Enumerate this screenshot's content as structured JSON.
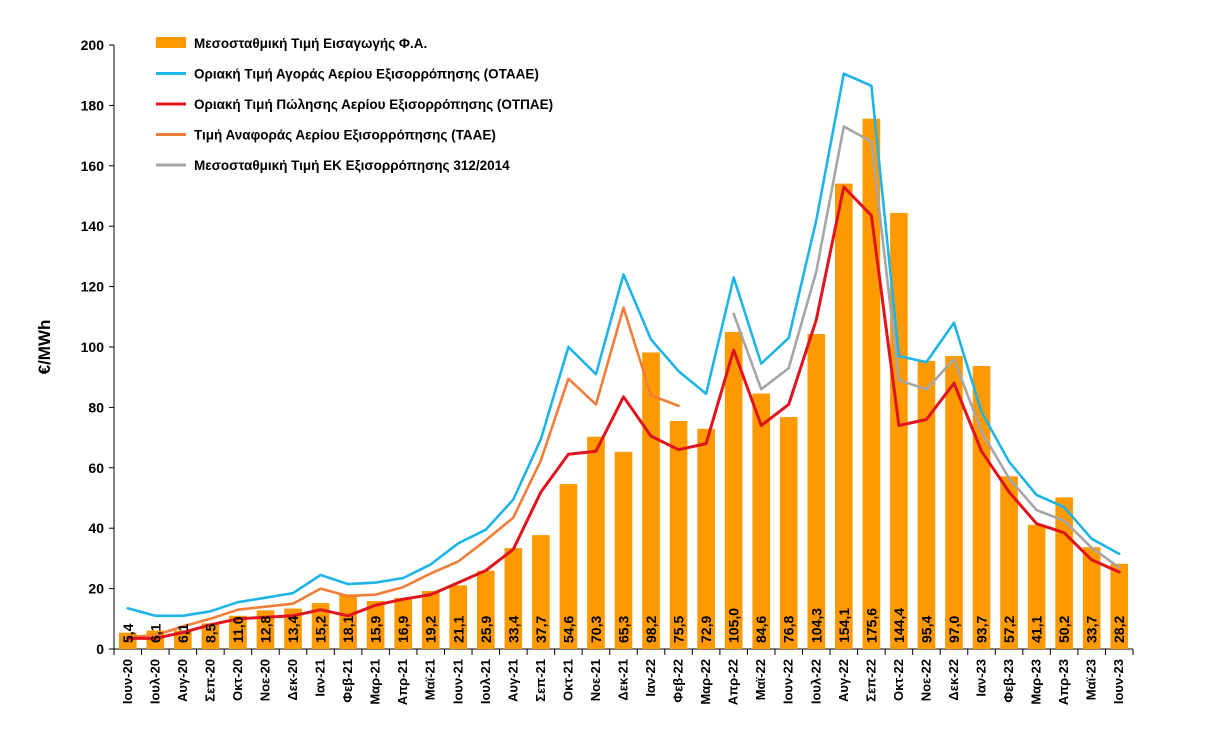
{
  "chart_data": {
    "type": "bar",
    "title": "",
    "ylabel": "€/MWh",
    "xlabel": "",
    "ylim": [
      0,
      200
    ],
    "yticks": [
      0,
      20,
      40,
      60,
      80,
      100,
      120,
      140,
      160,
      180,
      200
    ],
    "legend_position": "top-left",
    "categories": [
      "Ιουν-20",
      "Ιουλ-20",
      "Αυγ-20",
      "Σεπ-20",
      "Οκτ-20",
      "Νοε-20",
      "Δεκ-20",
      "Ιαν-21",
      "Φεβ-21",
      "Μαρ-21",
      "Απρ-21",
      "Μαϊ-21",
      "Ιουν-21",
      "Ιουλ-21",
      "Αυγ-21",
      "Σεπ-21",
      "Οκτ-21",
      "Νοε-21",
      "Δεκ-21",
      "Ιαν-22",
      "Φεβ-22",
      "Μαρ-22",
      "Απρ-22",
      "Μαϊ-22",
      "Ιουν-22",
      "Ιουλ-22",
      "Αυγ-22",
      "Σεπ-22",
      "Οκτ-22",
      "Νοε-22",
      "Δεκ-22",
      "Ιαν-23",
      "Φεβ-23",
      "Μαρ-23",
      "Απρ-23",
      "Μαϊ-23",
      "Ιουν-23"
    ],
    "series": [
      {
        "name": "Μεσοσταθμική Τιμή Εισαγωγής Φ.Α.",
        "type": "bar",
        "color": "#FF9900",
        "values": [
          5.4,
          6.1,
          6.1,
          8.5,
          11.0,
          12.8,
          13.4,
          15.2,
          18.1,
          15.9,
          16.9,
          19.2,
          21.1,
          25.9,
          33.4,
          37.7,
          54.6,
          70.3,
          65.3,
          98.2,
          75.5,
          72.9,
          105.0,
          84.6,
          76.8,
          104.3,
          154.1,
          175.6,
          144.4,
          95.4,
          97.0,
          93.7,
          57.2,
          41.1,
          50.2,
          33.7,
          28.2
        ],
        "labels": [
          "5,4",
          "6,1",
          "6,1",
          "8,5",
          "11,0",
          "12,8",
          "13,4",
          "15,2",
          "18,1",
          "15,9",
          "16,9",
          "19,2",
          "21,1",
          "25,9",
          "33,4",
          "37,7",
          "54,6",
          "70,3",
          "65,3",
          "98,2",
          "75,5",
          "72,9",
          "105,0",
          "84,6",
          "76,8",
          "104,3",
          "154,1",
          "175,6",
          "144,4",
          "95,4",
          "97,0",
          "93,7",
          "57,2",
          "41,1",
          "50,2",
          "33,7",
          "28,2"
        ]
      },
      {
        "name": "Οριακή Τιμή Αγοράς Αερίου Εξισορρόπησης  (ΟΤΑΑΕ)",
        "type": "line",
        "color": "#1EB4E8",
        "values": [
          13.5,
          11.0,
          11.0,
          12.5,
          15.5,
          17.0,
          18.5,
          24.5,
          21.5,
          22.0,
          23.5,
          28.0,
          35.0,
          39.5,
          49.5,
          69.5,
          100.0,
          91.0,
          124.0,
          102.5,
          92.0,
          84.5,
          123.0,
          94.5,
          103.0,
          142.0,
          190.5,
          186.5,
          97.0,
          95.0,
          108.0,
          78.5,
          62.0,
          51.0,
          47.0,
          36.5,
          31.5
        ]
      },
      {
        "name": "Οριακή Τιμή Πώλησης Αερίου Εξισορρόπησης (ΟΤΠΑΕ)",
        "type": "line",
        "color": "#E0141E",
        "values": [
          3.5,
          3.5,
          5.5,
          8.0,
          10.0,
          10.5,
          11.0,
          13.0,
          11.0,
          14.5,
          16.5,
          18.0,
          22.0,
          26.0,
          33.0,
          52.0,
          64.5,
          65.5,
          83.5,
          70.5,
          66.0,
          68.0,
          99.0,
          74.0,
          81.0,
          109.0,
          153.0,
          143.5,
          74.0,
          76.0,
          88.0,
          65.5,
          52.0,
          41.5,
          38.5,
          29.5,
          25.5
        ]
      },
      {
        "name": "Τιμή Αναφοράς Αερίου Εξισορρόπησης (ΤΑΑΕ)",
        "type": "line",
        "color": "#F07E38",
        "values": [
          4.0,
          4.5,
          7.5,
          10.0,
          13.0,
          14.0,
          15.0,
          20.0,
          17.5,
          18.0,
          20.5,
          25.0,
          29.0,
          36.0,
          43.5,
          62.5,
          89.5,
          81.0,
          113.0,
          84.0,
          80.5,
          null,
          null,
          null,
          null,
          null,
          null,
          null,
          null,
          null,
          null,
          null,
          null,
          null,
          null,
          null,
          null
        ]
      },
      {
        "name": "Μεσοσταθμική Τιμή ΕΚ Εξισορρόπησης 312/2014",
        "type": "line",
        "color": "#A6A6A6",
        "values": [
          null,
          null,
          null,
          null,
          null,
          null,
          null,
          null,
          null,
          null,
          null,
          null,
          null,
          null,
          null,
          null,
          null,
          null,
          null,
          null,
          null,
          null,
          111.0,
          86.0,
          93.0,
          125.0,
          173.0,
          168.0,
          89.0,
          86.0,
          96.0,
          72.0,
          56.5,
          46.0,
          42.5,
          33.5,
          27.0
        ]
      }
    ]
  }
}
